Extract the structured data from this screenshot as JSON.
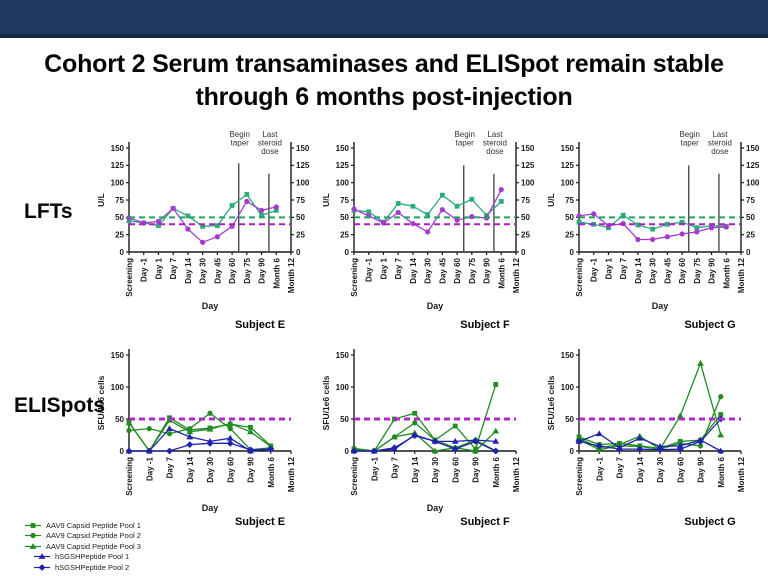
{
  "title": {
    "line1": "Cohort 2 Serum transaminases and ELISpot remain stable",
    "line2": "through 6 months post-injection"
  },
  "row_labels": {
    "lfts": "LFTs",
    "elispots": "ELISpots"
  },
  "subjects": [
    "Subject E",
    "Subject F",
    "Subject G"
  ],
  "colors": {
    "banner_navy": "#1f3a5f",
    "banner_edge": "#16283f",
    "lft_green": "#2cac7c",
    "lft_purple": "#a43bcf",
    "lft_green_dash": "#1fa468",
    "lft_purple_dash": "#ab1fc4",
    "eli_green": "#208b20",
    "eli_blue": "#1f22ad",
    "eli_purple_dash": "#b426ce",
    "axis": "#1a1a1a",
    "event_line": "#4d4d4d"
  },
  "legend": {
    "items": [
      {
        "label": "AAV9 Capsid Peptide Pool 1",
        "color": "#208b20",
        "marker": "square",
        "indent": false
      },
      {
        "label": "AAV9 Capsid Peptide Pool 2",
        "color": "#208b20",
        "marker": "circle",
        "indent": false
      },
      {
        "label": "AAV9 Capsid Peptide Pool 3",
        "color": "#208b20",
        "marker": "triangle",
        "indent": false
      },
      {
        "label": "hSGSHPeptide Pool 1",
        "color": "#1f22ad",
        "marker": "triangle",
        "indent": true
      },
      {
        "label": "hSGSHPeptide Pool 2",
        "color": "#1f22ad",
        "marker": "diamond",
        "indent": true
      }
    ]
  },
  "chart_data": [
    {
      "id": "lft-subject-e",
      "row": "LFTs",
      "subject": "Subject E",
      "type": "line",
      "ylabel": "U/L",
      "xlabel": "Day",
      "ylim": [
        0,
        150
      ],
      "yticks": [
        0,
        25,
        50,
        75,
        100,
        125,
        150
      ],
      "dual_axis": true,
      "grid": false,
      "categories": [
        "Screening",
        "Day -1",
        "Day 1",
        "Day 7",
        "Day 14",
        "Day 30",
        "Day 45",
        "Day 60",
        "Day 75",
        "Day 90",
        "Month 6",
        "Month 12"
      ],
      "ref_lines": [
        {
          "y": 50,
          "color": "#1fa468"
        },
        {
          "y": 40,
          "color": "#ab1fc4"
        }
      ],
      "event_lines": [
        {
          "x": 7.45,
          "top": 128,
          "label": "Begin taper"
        },
        {
          "x": 9.5,
          "top": 113,
          "label": "Last steroid dose"
        }
      ],
      "series": [
        {
          "name": "",
          "color": "#2cac7c",
          "marker": "square",
          "values": [
            45,
            42,
            38,
            63,
            52,
            37,
            38,
            67,
            83,
            53,
            60,
            null
          ]
        },
        {
          "name": "",
          "color": "#a43bcf",
          "marker": "circle",
          "values": [
            49,
            42,
            44,
            63,
            33,
            14,
            22,
            37,
            73,
            60,
            65,
            null
          ]
        }
      ]
    },
    {
      "id": "lft-subject-f",
      "row": "LFTs",
      "subject": "Subject F",
      "type": "line",
      "ylabel": "U/L",
      "xlabel": "Day",
      "ylim": [
        0,
        150
      ],
      "yticks": [
        0,
        25,
        50,
        75,
        100,
        125,
        150
      ],
      "dual_axis": true,
      "grid": false,
      "categories": [
        "Screening",
        "Day -1",
        "Day 1",
        "Day 7",
        "Day 14",
        "Day 30",
        "Day 45",
        "Day 60",
        "Day 75",
        "Day 90",
        "Month 6",
        "Month 12"
      ],
      "ref_lines": [
        {
          "y": 50,
          "color": "#1fa468"
        },
        {
          "y": 40,
          "color": "#ab1fc4"
        }
      ],
      "event_lines": [
        {
          "x": 7.45,
          "top": 125,
          "label": "Begin taper"
        },
        {
          "x": 9.5,
          "top": 113,
          "label": "Last steroid dose"
        }
      ],
      "series": [
        {
          "name": "",
          "color": "#2cac7c",
          "marker": "square",
          "values": [
            60,
            58,
            43,
            70,
            66,
            54,
            82,
            66,
            76,
            53,
            73,
            null
          ]
        },
        {
          "name": "",
          "color": "#a43bcf",
          "marker": "circle",
          "values": [
            62,
            52,
            42,
            57,
            41,
            29,
            61,
            46,
            51,
            49,
            90,
            null
          ]
        }
      ]
    },
    {
      "id": "lft-subject-g",
      "row": "LFTs",
      "subject": "Subject G",
      "type": "line",
      "ylabel": "U/L",
      "xlabel": "Day",
      "ylim": [
        0,
        150
      ],
      "yticks": [
        0,
        25,
        50,
        75,
        100,
        125,
        150
      ],
      "dual_axis": true,
      "grid": false,
      "categories": [
        "Screening",
        "Day -1",
        "Day 1",
        "Day 7",
        "Day 14",
        "Day 30",
        "Day 45",
        "Day 60",
        "Day 75",
        "Day 90",
        "Month 6",
        "Month 12"
      ],
      "ref_lines": [
        {
          "y": 50,
          "color": "#1fa468"
        },
        {
          "y": 40,
          "color": "#ab1fc4"
        }
      ],
      "event_lines": [
        {
          "x": 7.45,
          "top": 125,
          "label": "Begin taper"
        },
        {
          "x": 9.5,
          "top": 113,
          "label": "Last steroid dose"
        }
      ],
      "series": [
        {
          "name": "",
          "color": "#2cac7c",
          "marker": "square",
          "values": [
            43,
            40,
            35,
            53,
            39,
            33,
            40,
            43,
            35,
            38,
            37,
            null
          ]
        },
        {
          "name": "",
          "color": "#a43bcf",
          "marker": "circle",
          "values": [
            52,
            55,
            38,
            41,
            18,
            18,
            22,
            26,
            29,
            35,
            36,
            null
          ]
        }
      ]
    },
    {
      "id": "elispot-subject-e",
      "row": "ELISpots",
      "subject": "Subject E",
      "type": "line",
      "ylabel": "SFU/1e6 cells",
      "xlabel": "Day",
      "ylim": [
        0,
        150
      ],
      "yticks": [
        0,
        50,
        100,
        150
      ],
      "dual_axis": false,
      "grid": false,
      "categories": [
        "Screening",
        "Day -1",
        "Day 7",
        "Day 14",
        "Day 30",
        "Day 60",
        "Day 90",
        "Month 6",
        "Month 12"
      ],
      "ref_lines": [
        {
          "y": 50,
          "color": "#b426ce"
        }
      ],
      "event_lines": [],
      "series": [
        {
          "name": "AAV9 Capsid Peptide Pool 1",
          "color": "#208b20",
          "marker": "square",
          "values": [
            45,
            0,
            52,
            33,
            36,
            42,
            37,
            8,
            null
          ]
        },
        {
          "name": "AAV9 Capsid Peptide Pool 2",
          "color": "#208b20",
          "marker": "circle",
          "values": [
            32,
            35,
            27,
            35,
            59,
            35,
            2,
            5,
            null
          ]
        },
        {
          "name": "AAV9 Capsid Peptide Pool 3",
          "color": "#208b20",
          "marker": "triangle",
          "values": [
            44,
            0,
            48,
            30,
            34,
            43,
            30,
            7,
            null
          ]
        },
        {
          "name": "hSGSHPeptide Pool 1",
          "color": "#1f22ad",
          "marker": "triangle",
          "values": [
            0,
            0,
            35,
            22,
            15,
            20,
            0,
            3,
            null
          ]
        },
        {
          "name": "hSGSHPeptide Pool 2",
          "color": "#1f22ad",
          "marker": "diamond",
          "values": [
            0,
            0,
            0,
            10,
            12,
            12,
            2,
            3,
            null
          ]
        }
      ]
    },
    {
      "id": "elispot-subject-f",
      "row": "ELISpots",
      "subject": "Subject F",
      "type": "line",
      "ylabel": "SFU/1e6 cells",
      "xlabel": "Day",
      "ylim": [
        0,
        150
      ],
      "yticks": [
        0,
        50,
        100,
        150
      ],
      "dual_axis": false,
      "grid": false,
      "categories": [
        "Screening",
        "Day -1",
        "Day 7",
        "Day 14",
        "Day 30",
        "Day 60",
        "Day 90",
        "Month 6",
        "Month 12"
      ],
      "ref_lines": [
        {
          "y": 50,
          "color": "#b426ce"
        }
      ],
      "event_lines": [],
      "series": [
        {
          "name": "AAV9 Capsid Peptide Pool 1",
          "color": "#208b20",
          "marker": "square",
          "values": [
            3,
            0,
            50,
            59,
            17,
            39,
            3,
            104,
            null
          ]
        },
        {
          "name": "AAV9 Capsid Peptide Pool 2",
          "color": "#208b20",
          "marker": "circle",
          "values": [
            4,
            0,
            22,
            44,
            17,
            5,
            17,
            0,
            null
          ]
        },
        {
          "name": "AAV9 Capsid Peptide Pool 3",
          "color": "#208b20",
          "marker": "triangle",
          "values": [
            2,
            0,
            22,
            28,
            0,
            5,
            0,
            31,
            null
          ]
        },
        {
          "name": "hSGSHPeptide Pool 1",
          "color": "#1f22ad",
          "marker": "triangle",
          "values": [
            0,
            0,
            3,
            25,
            15,
            15,
            17,
            15,
            null
          ]
        },
        {
          "name": "hSGSHPeptide Pool 2",
          "color": "#1f22ad",
          "marker": "diamond",
          "values": [
            0,
            0,
            5,
            24,
            15,
            3,
            15,
            0,
            null
          ]
        }
      ]
    },
    {
      "id": "elispot-subject-g",
      "row": "ELISpots",
      "subject": "Subject G",
      "type": "line",
      "ylabel": "SFU/1e6 cells",
      "xlabel": null,
      "ylim": [
        0,
        150
      ],
      "yticks": [
        0,
        50,
        100,
        150
      ],
      "dual_axis": false,
      "grid": false,
      "categories": [
        "Screening",
        "Day -1",
        "Day 7",
        "Day 14",
        "Day 30",
        "Day 60",
        "Day 90",
        "Month 6",
        "Month 12"
      ],
      "ref_lines": [
        {
          "y": 50,
          "color": "#b426ce"
        }
      ],
      "event_lines": [],
      "series": [
        {
          "name": "AAV9 Capsid Peptide Pool 1",
          "color": "#208b20",
          "marker": "square",
          "values": [
            22,
            10,
            12,
            8,
            4,
            15,
            17,
            57,
            null
          ]
        },
        {
          "name": "AAV9 Capsid Peptide Pool 2",
          "color": "#208b20",
          "marker": "circle",
          "values": [
            18,
            2,
            8,
            7,
            3,
            12,
            8,
            85,
            null
          ]
        },
        {
          "name": "AAV9 Capsid Peptide Pool 3",
          "color": "#208b20",
          "marker": "triangle",
          "values": [
            20,
            5,
            10,
            23,
            3,
            55,
            137,
            25,
            null
          ]
        },
        {
          "name": "hSGSHPeptide Pool 1",
          "color": "#1f22ad",
          "marker": "triangle",
          "values": [
            15,
            27,
            5,
            20,
            7,
            8,
            17,
            0,
            null
          ]
        },
        {
          "name": "hSGSHPeptide Pool 2",
          "color": "#1f22ad",
          "marker": "diamond",
          "values": [
            15,
            8,
            3,
            3,
            2,
            3,
            15,
            50,
            null
          ]
        }
      ]
    }
  ]
}
